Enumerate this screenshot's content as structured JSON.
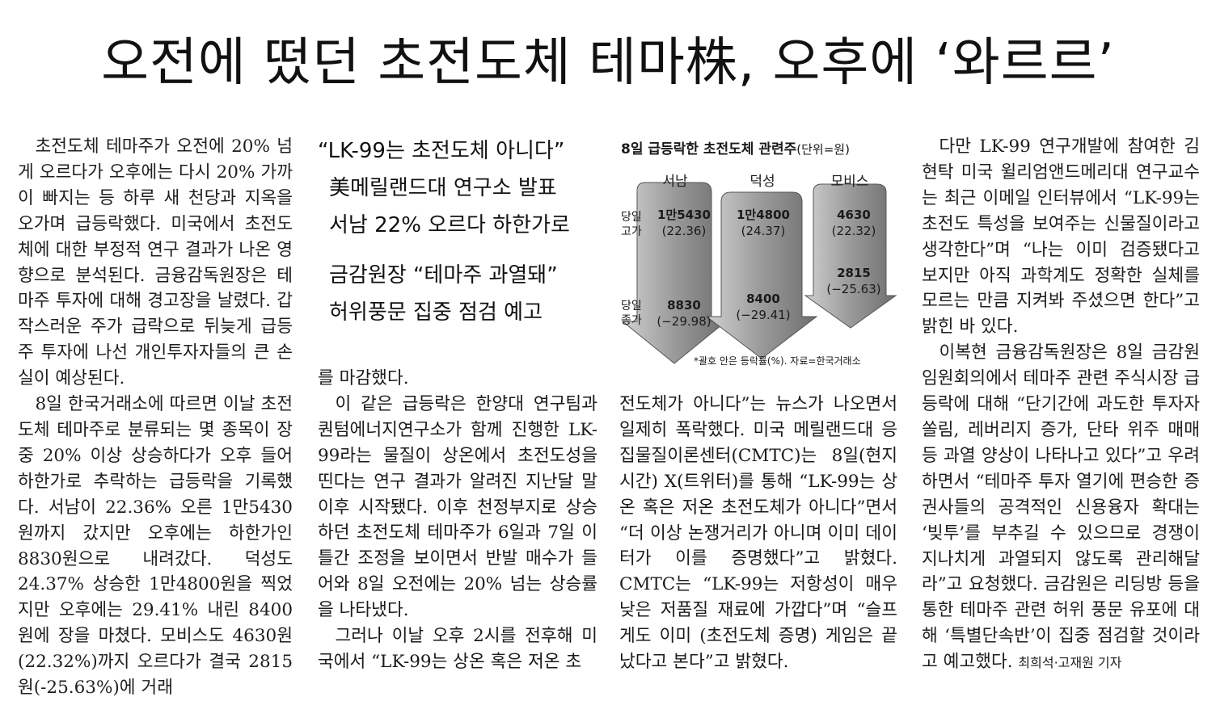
{
  "headline": "오전에 떴던 초전도체 테마株, 오후에 ‘와르르’",
  "col1": [
    "초전도체 테마주가 오전에 20% 넘게 오르다가 오후에는 다시 20% 가까이 빠지는 등 하루 새 천당과 지옥을 오가며 급등락했다. 미국에서 초전도체에 대한 부정적 연구 결과가 나온 영향으로 분석된다. 금융감독원장은 테마주 투자에 대해 경고장을 날렸다. 갑작스러운 주가 급락으로 뒤늦게 급등주 투자에 나선 개인투자자들의 큰 손실이 예상된다.",
    "8일 한국거래소에 따르면 이날 초전도체 테마주로 분류되는 몇 종목이 장중 20% 이상 상승하다가 오후 들어 하한가로 추락하는 급등락을 기록했다. 서남이 22.36% 오른 1만5430원까지 갔지만 오후에는 하한가인 8830원으로 내려갔다. 덕성도 24.37% 상승한 1만4800원을 찍었지만 오후에는 29.41% 내린 8400원에 장을 마쳤다. 모비스도 4630원(22.32%)까지 오르다가 결국 2815원(-25.63%)에 거래"
  ],
  "subheads": [
    "“LK-99는 초전도체 아니다”",
    "美메릴랜드대 연구소 발표",
    "서남 22% 오르다 하한가로",
    "금감원장 “테마주 과열돼”",
    "허위풍문 집중 점검 예고"
  ],
  "col2": [
    "를 마감했다.",
    "이 같은 급등락은 한양대 연구팀과 퀀텀에너지연구소가 함께 진행한 LK-99라는 물질이 상온에서 초전도성을 띤다는 연구 결과가 알려진 지난달 말 이후 시작됐다. 이후 천정부지로 상승하던 초전도체 테마주가 6일과 7일 이틀간 조정을 보이면서 반발 매수가 들어와 8일 오전에는 20% 넘는 상승률을 나타냈다.",
    "그러나 이날 오후 2시를 전후해 미국에서 “LK-99는 상온 혹은 저온 초"
  ],
  "col3": [
    "전도체가 아니다”는 뉴스가 나오면서 일제히 폭락했다. 미국 메릴랜드대 응집물질이론센터(CMTC)는 8일(현지시간) X(트위터)를 통해 “LK-99는 상온 혹은 저온 초전도체가 아니다”면서 “더 이상 논쟁거리가 아니며 이미 데이터가 이를 증명했다”고 밝혔다. CMTC는 “LK-99는 저항성이 매우 낮은 저품질 재료에 가깝다”며 “슬프게도 이미 (초전도체 증명) 게임은 끝났다고 본다”고 밝혔다."
  ],
  "col4": [
    "다만 LK-99 연구개발에 참여한 김현탁 미국 윌리엄앤드메리대 연구교수는 최근 이메일 인터뷰에서 “LK-99는 초전도 특성을 보여주는 신물질이라고 생각한다”며 “나는 이미 검증됐다고 보지만 아직 과학계도 정확한 실체를 모르는 만큼 지켜봐 주셨으면 한다”고 밝힌 바 있다.",
    "이복현 금융감독원장은 8일 금감원 임원회의에서 테마주 관련 주식시장 급등락에 대해 “단기간에 과도한 투자자 쏠림, 레버리지 증가, 단타 위주 매매 등 과열 양상이 나타나고 있다”고 우려하면서 “테마주 투자 열기에 편승한 증권사들의 공격적인 신용융자 확대는 ‘빚투’를 부추길 수 있으므로 경쟁이 지나치게 과열되지 않도록 관리해달라”고 요청했다. 금감원은 리딩방 등을 통한 테마주 관련 허위 풍문 유포에 대해 ‘특별단속반’이 집중 점검할 것이라고 예고했다."
  ],
  "byline": "최희석·고재원 기자",
  "infographic": {
    "title": "8일 급등락한 초전도체 관련주",
    "unit": "(단위=원)",
    "row_high": "당일\n고가",
    "row_close": "당일\n종가",
    "note": "*괄호 안은 등락률(%). 자료=한국거래소",
    "arrow_color": "#8a8a8a",
    "stocks": [
      {
        "name": "서남",
        "high": "1만5430",
        "high_pct": "(22.36)",
        "close": "8830",
        "close_pct": "(−29.98)"
      },
      {
        "name": "덕성",
        "high": "1만4800",
        "high_pct": "(24.37)",
        "close": "8400",
        "close_pct": "(−29.41)"
      },
      {
        "name": "모비스",
        "high": "4630",
        "high_pct": "(22.32)",
        "close": "2815",
        "close_pct": "(−25.63)"
      }
    ]
  }
}
